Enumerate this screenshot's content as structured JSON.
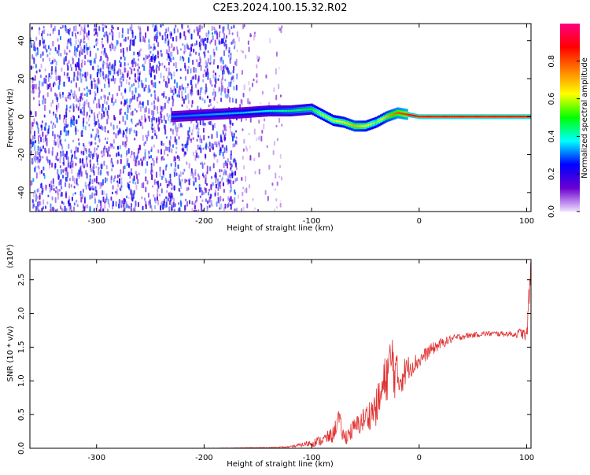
{
  "figure": {
    "title": "C2E3.2024.100.15.32.R02"
  },
  "chart_data": [
    {
      "type": "heatmap",
      "xlabel": "Height of straight line (km)",
      "ylabel": "Frequency (Hz)",
      "xlim": [
        -362,
        104
      ],
      "ylim": [
        -50,
        49
      ],
      "xticks": [
        -300,
        -200,
        -100,
        0,
        100
      ],
      "yticks": [
        -40,
        -20,
        0,
        20,
        40
      ],
      "colorbar": {
        "label": "Normalized spectral amplitude",
        "range": [
          0,
          1
        ],
        "ticks": [
          "0.0",
          "0.2",
          "0.4",
          "0.6",
          "0.8"
        ],
        "colors": [
          "#f0e0ff",
          "#6a00d0",
          "#0000ff",
          "#00ffff",
          "#00ff00",
          "#ffff00",
          "#ff8000",
          "#ff0000",
          "#ff0080"
        ]
      },
      "regions": [
        {
          "name": "diffuse noise band",
          "x_range": [
            -362,
            -170
          ],
          "y_range": [
            -50,
            49
          ],
          "amplitude": 0.05
        },
        {
          "name": "sparse noise band",
          "x_range": [
            -170,
            -128
          ],
          "y_range": [
            -50,
            49
          ],
          "amplitude": 0.02
        }
      ],
      "ridge": {
        "x": [
          -230,
          -165,
          -140,
          -120,
          -100,
          -90,
          -80,
          -70,
          -60,
          -50,
          -40,
          -30,
          -20,
          -10,
          0,
          30,
          60,
          90,
          104
        ],
        "y": [
          0,
          2,
          3,
          3,
          4,
          1,
          -2,
          -3,
          -5,
          -5,
          -3,
          0,
          2,
          1,
          0,
          0,
          0,
          0,
          0
        ],
        "peak_amplitude": [
          0.3,
          0.35,
          0.4,
          0.45,
          0.5,
          0.6,
          0.6,
          0.65,
          0.7,
          0.65,
          0.55,
          0.7,
          0.8,
          0.85,
          0.9,
          0.9,
          0.9,
          0.9,
          0.9
        ]
      }
    },
    {
      "type": "line",
      "xlabel": "Height of straight line (km)",
      "ylabel": "SNR (10 * v/v)",
      "y_multiplier": "(x10⁴)",
      "xlim": [
        -362,
        104
      ],
      "ylim": [
        0,
        2.8
      ],
      "xticks": [
        -300,
        -200,
        -100,
        0,
        100
      ],
      "yticks": [
        "0.0",
        "0.5",
        "1.0",
        "1.5",
        "2.0",
        "2.5"
      ],
      "series": [
        {
          "color": "#e03030",
          "x": [
            -362,
            -300,
            -200,
            -140,
            -120,
            -110,
            -100,
            -90,
            -80,
            -75,
            -70,
            -60,
            -50,
            -40,
            -35,
            -30,
            -25,
            -20,
            -15,
            -10,
            0,
            10,
            20,
            30,
            40,
            50,
            60,
            70,
            80,
            90,
            95,
            100,
            104
          ],
          "y": [
            0.0,
            0.0,
            0.0,
            0.01,
            0.02,
            0.05,
            0.08,
            0.12,
            0.2,
            0.45,
            0.15,
            0.3,
            0.45,
            0.6,
            0.8,
            1.1,
            1.3,
            1.0,
            1.1,
            1.2,
            1.3,
            1.45,
            1.55,
            1.62,
            1.66,
            1.68,
            1.7,
            1.7,
            1.7,
            1.69,
            1.72,
            1.65,
            2.7
          ],
          "noise": [
            0.0,
            0.0,
            0.002,
            0.005,
            0.01,
            0.03,
            0.06,
            0.08,
            0.12,
            0.15,
            0.12,
            0.15,
            0.2,
            0.28,
            0.35,
            0.4,
            0.5,
            0.35,
            0.25,
            0.18,
            0.12,
            0.1,
            0.08,
            0.06,
            0.05,
            0.04,
            0.04,
            0.04,
            0.04,
            0.05,
            0.08,
            0.1,
            0.3
          ]
        }
      ]
    }
  ]
}
